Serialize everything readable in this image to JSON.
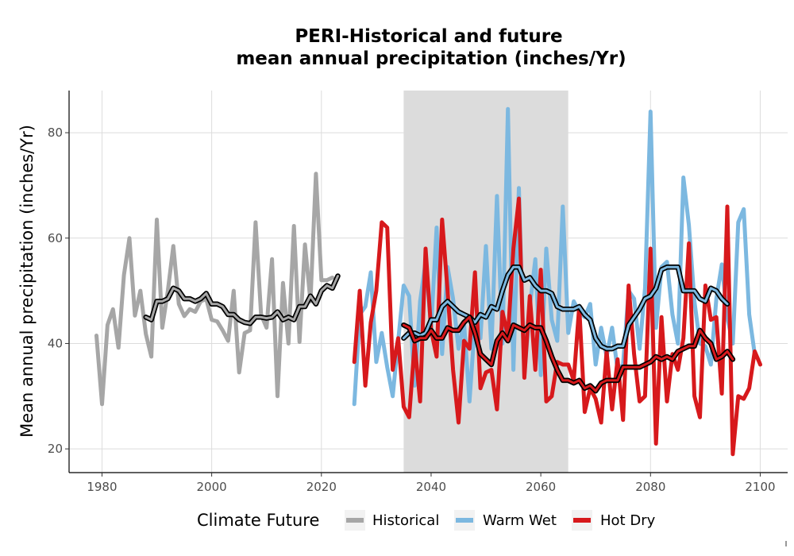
{
  "chart_data": {
    "type": "line",
    "title_line1": "PERI-Historical and future",
    "title_line2": "mean annual precipitation (inches/Yr)",
    "xlabel": "",
    "ylabel": "Mean annual precipitation (inches/Yr)",
    "xlim": [
      1974,
      2105
    ],
    "ylim": [
      15.5,
      88
    ],
    "x_ticks": [
      "1980",
      "2000",
      "2020",
      "2040",
      "2060",
      "2080",
      "2100"
    ],
    "y_ticks": [
      "20",
      "40",
      "60",
      "80"
    ],
    "highlight_band": [
      2035,
      2065
    ],
    "grid": true,
    "legend": {
      "title": "Climate Future",
      "position": "bottom",
      "entries": [
        "Historical",
        "Warm Wet",
        "Hot Dry"
      ]
    },
    "colors": {
      "Historical": "#a6a6a6",
      "Warm Wet": "#7cb8e0",
      "Hot Dry": "#d7191c",
      "band": "#dcdcdc",
      "smooth": "#000000"
    },
    "series": [
      {
        "name": "Historical",
        "x_start": 1979,
        "values": [
          41.5,
          28.5,
          43.5,
          46.5,
          39.2,
          53.0,
          60.0,
          45.3,
          50.0,
          41.8,
          37.5,
          63.5,
          43.0,
          50.0,
          58.5,
          47.5,
          45.2,
          46.5,
          46.0,
          48.0,
          48.5,
          44.5,
          44.2,
          42.5,
          40.5,
          50.0,
          34.5,
          42.0,
          42.5,
          63.0,
          45.5,
          43.0,
          56.0,
          30.0,
          51.5,
          40.0,
          62.3,
          40.3,
          58.8,
          48.0,
          72.2,
          52.0,
          52.0,
          52.5
        ]
      },
      {
        "name": "Historical (smoothed)",
        "x_start": 1988,
        "values": [
          45.0,
          44.5,
          48.0,
          48.0,
          48.5,
          50.5,
          50.0,
          48.5,
          48.5,
          48.0,
          48.5,
          49.5,
          47.5,
          47.5,
          47.0,
          45.5,
          45.5,
          44.5,
          44.0,
          43.8,
          45.0,
          45.0,
          44.8,
          45.0,
          46.0,
          44.5,
          45.0,
          44.5,
          47.0,
          47.0,
          49.0,
          47.5,
          50.0,
          51.0,
          50.5,
          52.8
        ]
      },
      {
        "name": "Warm Wet",
        "x_start": 2026,
        "values": [
          28.5,
          45.5,
          47.0,
          53.5,
          36.5,
          42.0,
          35.5,
          30.0,
          40.5,
          51.0,
          49.0,
          32.0,
          48.0,
          55.5,
          43.0,
          62.0,
          38.0,
          54.5,
          48.5,
          39.0,
          44.0,
          29.0,
          44.0,
          41.0,
          58.5,
          39.0,
          68.0,
          40.0,
          84.5,
          35.0,
          69.5,
          34.0,
          47.0,
          56.0,
          34.0,
          58.0,
          44.5,
          40.5,
          66.0,
          42.0,
          48.0,
          46.0,
          45.0,
          47.5,
          36.0,
          43.0,
          37.5,
          43.0,
          35.0,
          36.0,
          50.0,
          48.5,
          39.0,
          50.5,
          84.0,
          43.0,
          54.5,
          55.5,
          45.5,
          40.0,
          71.5,
          62.5,
          48.0,
          40.0,
          39.5,
          36.0,
          48.5,
          55.0,
          45.0,
          40.0,
          63.0,
          65.5,
          45.5,
          38.0
        ]
      },
      {
        "name": "Warm Wet (smoothed)",
        "x_start": 2035,
        "values": [
          41.0,
          42.0,
          42.0,
          41.5,
          42.0,
          44.5,
          44.5,
          47.0,
          48.0,
          47.0,
          46.0,
          45.5,
          45.0,
          44.0,
          45.5,
          45.0,
          47.0,
          46.5,
          50.0,
          53.0,
          54.5,
          54.5,
          52.0,
          52.5,
          51.0,
          50.0,
          50.0,
          49.5,
          47.0,
          46.5,
          46.5,
          46.5,
          47.0,
          45.5,
          44.5,
          41.0,
          39.5,
          39.0,
          39.0,
          39.5,
          39.5,
          43.5,
          45.0,
          46.5,
          48.5,
          49.0,
          50.5,
          54.0,
          54.5,
          54.5,
          54.5,
          50.0,
          50.0,
          50.0,
          48.5,
          48.0,
          50.5,
          50.0,
          48.5,
          47.5
        ]
      },
      {
        "name": "Hot Dry",
        "x_start": 2026,
        "values": [
          36.5,
          50.0,
          32.0,
          44.0,
          50.0,
          63.0,
          62.0,
          35.0,
          41.0,
          28.0,
          26.0,
          40.0,
          29.0,
          58.0,
          42.5,
          37.5,
          63.5,
          50.0,
          35.0,
          25.0,
          40.5,
          39.0,
          53.5,
          31.5,
          34.5,
          35.0,
          27.5,
          46.0,
          41.5,
          58.0,
          67.5,
          33.5,
          49.0,
          35.0,
          54.0,
          29.0,
          30.0,
          36.5,
          36.0,
          36.0,
          33.0,
          47.0,
          27.0,
          31.5,
          29.5,
          25.0,
          38.5,
          27.5,
          37.0,
          25.5,
          51.0,
          38.0,
          29.0,
          30.0,
          58.0,
          21.0,
          45.0,
          29.0,
          38.0,
          35.0,
          41.0,
          59.0,
          30.0,
          26.0,
          51.0,
          44.5,
          45.0,
          30.5,
          66.0,
          19.0,
          30.0,
          29.5,
          31.5,
          38.5,
          36.0
        ]
      },
      {
        "name": "Hot Dry (smoothed)",
        "x_start": 2035,
        "values": [
          43.5,
          43.0,
          40.5,
          41.0,
          41.0,
          42.5,
          41.0,
          41.0,
          43.0,
          42.5,
          42.5,
          44.0,
          45.0,
          42.0,
          38.0,
          37.0,
          36.0,
          40.5,
          42.0,
          40.5,
          43.5,
          43.0,
          42.5,
          43.5,
          43.0,
          43.0,
          40.5,
          37.5,
          35.0,
          33.0,
          33.0,
          32.5,
          33.0,
          31.5,
          32.0,
          31.0,
          32.5,
          33.0,
          33.0,
          33.0,
          35.5,
          35.5,
          35.5,
          35.5,
          36.0,
          36.5,
          37.5,
          37.0,
          37.5,
          37.0,
          38.5,
          39.0,
          39.5,
          39.5,
          42.5,
          41.0,
          40.0,
          37.0,
          37.5,
          38.5,
          37.0
        ]
      }
    ]
  }
}
